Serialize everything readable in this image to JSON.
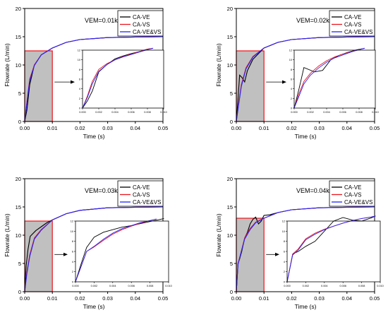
{
  "colors": {
    "ve": "#000000",
    "vs": "#e8141c",
    "vevs": "#2424ff",
    "shade": "#c0c0c0",
    "box": "#e8141c"
  },
  "chart_data": [
    {
      "type": "line",
      "annotation": "VEM=0.01kg",
      "xlabel": "Time (s)",
      "ylabel": "Flowrate (L/min)",
      "xlim": [
        0,
        0.05
      ],
      "ylim": [
        0,
        20
      ],
      "xticks": [
        "0.00",
        "0.01",
        "0.02",
        "0.03",
        "0.04",
        "0.05"
      ],
      "yticks": [
        "0",
        "5",
        "10",
        "15",
        "20"
      ],
      "shaded_region": {
        "x": [
          0,
          0.01
        ],
        "y": [
          0,
          12.5
        ]
      },
      "series": [
        {
          "name": "CA-VE",
          "x": [
            0,
            0.0008,
            0.0018,
            0.0035,
            0.006,
            0.01,
            0.015,
            0.02,
            0.03,
            0.04,
            0.05
          ],
          "y": [
            0,
            2.0,
            6.5,
            10.0,
            11.8,
            13.0,
            14.0,
            14.5,
            14.85,
            14.95,
            15.0
          ]
        },
        {
          "name": "CA-VS",
          "x": [
            0,
            0.0008,
            0.0018,
            0.0035,
            0.006,
            0.01,
            0.015,
            0.02,
            0.03,
            0.04,
            0.05
          ],
          "y": [
            0,
            3.5,
            7.5,
            10.0,
            11.8,
            13.0,
            14.0,
            14.5,
            14.85,
            14.95,
            15.0
          ]
        },
        {
          "name": "CA-VE&VS",
          "x": [
            0,
            0.0008,
            0.0018,
            0.0035,
            0.006,
            0.01,
            0.015,
            0.02,
            0.03,
            0.04,
            0.05
          ],
          "y": [
            0,
            3.2,
            7.2,
            9.9,
            11.8,
            13.0,
            14.0,
            14.5,
            14.85,
            14.95,
            15.0
          ]
        }
      ],
      "inset": {
        "xlim": [
          0,
          0.01
        ],
        "ylim": [
          0,
          12
        ],
        "xticks": [
          "0.000",
          "0.002",
          "0.004",
          "0.006",
          "0.008",
          "0.010"
        ],
        "yticks": [
          "0",
          "2",
          "4",
          "6",
          "8",
          "10",
          "12"
        ],
        "series": [
          {
            "name": "CA-VE",
            "x": [
              0,
              0.0006,
              0.0012,
              0.002,
              0.003,
              0.004,
              0.005,
              0.006,
              0.007,
              0.008,
              0.0087
            ],
            "y": [
              0,
              1.5,
              3.5,
              7.5,
              9.0,
              10.2,
              10.8,
              11.3,
              11.7,
              12.2,
              12.4
            ]
          },
          {
            "name": "CA-VS",
            "x": [
              0,
              0.0006,
              0.0012,
              0.002,
              0.003,
              0.004,
              0.005,
              0.006,
              0.007,
              0.008,
              0.0087
            ],
            "y": [
              0,
              2.5,
              5.5,
              8.0,
              9.2,
              10.0,
              10.7,
              11.2,
              11.7,
              12.2,
              12.4
            ]
          },
          {
            "name": "CA-VE&VS",
            "x": [
              0,
              0.0006,
              0.0012,
              0.002,
              0.003,
              0.004,
              0.005,
              0.006,
              0.007,
              0.008,
              0.0087
            ],
            "y": [
              0,
              2.2,
              5.0,
              7.6,
              9.0,
              10.0,
              10.6,
              11.1,
              11.6,
              12.1,
              12.4
            ]
          }
        ]
      }
    },
    {
      "type": "line",
      "annotation": "VEM=0.02kg",
      "xlabel": "Time (s)",
      "ylabel": "Flowrate (L/min)",
      "xlim": [
        0,
        0.05
      ],
      "ylim": [
        0,
        20
      ],
      "xticks": [
        "0.00",
        "0.01",
        "0.02",
        "0.03",
        "0.04",
        "0.05"
      ],
      "yticks": [
        "0",
        "5",
        "10",
        "15",
        "20"
      ],
      "shaded_region": {
        "x": [
          0,
          0.01
        ],
        "y": [
          0,
          12.5
        ]
      },
      "series": [
        {
          "name": "CA-VE",
          "x": [
            0,
            0.0006,
            0.0012,
            0.002,
            0.003,
            0.004,
            0.006,
            0.01,
            0.015,
            0.02,
            0.03,
            0.04,
            0.05
          ],
          "y": [
            0,
            4.0,
            8.2,
            7.8,
            7.0,
            9.0,
            11.0,
            13.0,
            14.0,
            14.5,
            14.85,
            14.95,
            15.0
          ]
        },
        {
          "name": "CA-VS",
          "x": [
            0,
            0.0008,
            0.0018,
            0.0035,
            0.006,
            0.01,
            0.015,
            0.02,
            0.03,
            0.04,
            0.05
          ],
          "y": [
            0,
            3.0,
            6.5,
            9.5,
            11.5,
            13.0,
            14.0,
            14.5,
            14.85,
            14.95,
            15.0
          ]
        },
        {
          "name": "CA-VE&VS",
          "x": [
            0,
            0.0008,
            0.0018,
            0.0035,
            0.006,
            0.01,
            0.015,
            0.02,
            0.03,
            0.04,
            0.05
          ],
          "y": [
            0,
            2.8,
            6.2,
            9.3,
            11.4,
            13.0,
            14.0,
            14.5,
            14.85,
            14.95,
            15.0
          ]
        }
      ],
      "inset": {
        "xlim": [
          0,
          0.01
        ],
        "ylim": [
          0,
          12
        ],
        "xticks": [
          "0.000",
          "0.002",
          "0.004",
          "0.006",
          "0.008",
          "0.010"
        ],
        "yticks": [
          "0",
          "2",
          "4",
          "6",
          "8",
          "10",
          "12"
        ],
        "series": [
          {
            "name": "CA-VE",
            "x": [
              0,
              0.0006,
              0.0012,
              0.0025,
              0.0035,
              0.0045,
              0.0055,
              0.0065,
              0.0075,
              0.0087
            ],
            "y": [
              0,
              4.0,
              8.4,
              7.5,
              7.8,
              10.0,
              10.9,
              11.5,
              12.0,
              12.4
            ]
          },
          {
            "name": "CA-VS",
            "x": [
              0,
              0.0006,
              0.0012,
              0.002,
              0.003,
              0.004,
              0.005,
              0.006,
              0.007,
              0.008,
              0.0087
            ],
            "y": [
              0,
              3.0,
              5.5,
              7.2,
              8.7,
              9.8,
              10.6,
              11.2,
              11.7,
              12.1,
              12.4
            ]
          },
          {
            "name": "CA-VE&VS",
            "x": [
              0,
              0.0006,
              0.0012,
              0.002,
              0.003,
              0.004,
              0.005,
              0.006,
              0.007,
              0.008,
              0.0087
            ],
            "y": [
              0,
              2.5,
              5.0,
              6.8,
              8.3,
              9.5,
              10.4,
              11.0,
              11.6,
              12.1,
              12.4
            ]
          }
        ]
      }
    },
    {
      "type": "line",
      "annotation": "VEM=0.03kg",
      "xlabel": "Time (s)",
      "ylabel": "Flowrate (L/min)",
      "xlim": [
        0,
        0.05
      ],
      "ylim": [
        0,
        20
      ],
      "xticks": [
        "0.00",
        "0.01",
        "0.02",
        "0.03",
        "0.04",
        "0.05"
      ],
      "yticks": [
        "0",
        "5",
        "10",
        "15",
        "20"
      ],
      "shaded_region": {
        "x": [
          0,
          0.01
        ],
        "y": [
          0,
          12.5
        ]
      },
      "series": [
        {
          "name": "CA-VE",
          "x": [
            0,
            0.0005,
            0.0012,
            0.002,
            0.004,
            0.006,
            0.008,
            0.01,
            0.015,
            0.02,
            0.03,
            0.04,
            0.05
          ],
          "y": [
            0,
            4.5,
            7.5,
            9.8,
            10.8,
            11.5,
            12.2,
            12.7,
            13.8,
            14.4,
            14.85,
            14.95,
            15.0
          ]
        },
        {
          "name": "CA-VS",
          "x": [
            0,
            0.0008,
            0.0018,
            0.0035,
            0.006,
            0.01,
            0.015,
            0.02,
            0.03,
            0.04,
            0.05
          ],
          "y": [
            0,
            3.5,
            6.5,
            9.5,
            11.0,
            12.7,
            13.8,
            14.4,
            14.85,
            14.95,
            15.0
          ]
        },
        {
          "name": "CA-VE&VS",
          "x": [
            0,
            0.0008,
            0.0018,
            0.0035,
            0.006,
            0.01,
            0.015,
            0.02,
            0.03,
            0.04,
            0.05
          ],
          "y": [
            0,
            3.2,
            6.2,
            9.3,
            10.9,
            12.7,
            13.8,
            14.4,
            14.85,
            14.95,
            15.0
          ]
        }
      ],
      "inset": {
        "xlim": [
          0,
          0.01
        ],
        "ylim": [
          0,
          12
        ],
        "xticks": [
          "0.000",
          "0.002",
          "0.004",
          "0.006",
          "0.008",
          "0.010"
        ],
        "yticks": [
          "0",
          "2",
          "4",
          "6",
          "8",
          "10",
          "12"
        ],
        "series": [
          {
            "name": "CA-VE",
            "x": [
              0,
              0.0006,
              0.0012,
              0.002,
              0.003,
              0.004,
              0.005,
              0.006,
              0.007,
              0.008,
              0.009,
              0.0095
            ],
            "y": [
              0,
              3.5,
              6.8,
              8.8,
              9.8,
              10.3,
              10.8,
              11.1,
              11.5,
              11.9,
              12.3,
              12.5
            ]
          },
          {
            "name": "CA-VS",
            "x": [
              0,
              0.0006,
              0.0012,
              0.002,
              0.003,
              0.004,
              0.005,
              0.006,
              0.007,
              0.008,
              0.0087
            ],
            "y": [
              0,
              3.0,
              6.0,
              6.9,
              8.2,
              9.4,
              10.3,
              11.0,
              11.6,
              12.1,
              12.4
            ]
          },
          {
            "name": "CA-VE&VS",
            "x": [
              0,
              0.0006,
              0.0012,
              0.002,
              0.003,
              0.004,
              0.005,
              0.006,
              0.007,
              0.008,
              0.0087
            ],
            "y": [
              0,
              3.0,
              6.0,
              7.0,
              8.4,
              9.6,
              10.5,
              11.1,
              11.7,
              12.1,
              12.4
            ]
          }
        ]
      }
    },
    {
      "type": "line",
      "annotation": "VEM=0.04kg",
      "xlabel": "Time (s)",
      "ylabel": "Flowrate (L/min)",
      "xlim": [
        0,
        0.05
      ],
      "ylim": [
        0,
        20
      ],
      "xticks": [
        "0.00",
        "0.01",
        "0.02",
        "0.03",
        "0.04",
        "0.05"
      ],
      "yticks": [
        "0",
        "5",
        "10",
        "15",
        "20"
      ],
      "shaded_region": {
        "x": [
          0,
          0.01
        ],
        "y": [
          0,
          13
        ]
      },
      "series": [
        {
          "name": "CA-VE",
          "x": [
            0,
            0.0006,
            0.0012,
            0.002,
            0.003,
            0.004,
            0.005,
            0.006,
            0.007,
            0.008,
            0.009,
            0.01,
            0.012,
            0.015,
            0.02,
            0.03,
            0.04,
            0.05
          ],
          "y": [
            0,
            5.0,
            5.8,
            7.2,
            9.5,
            10.5,
            12.0,
            12.8,
            13.2,
            12.0,
            12.5,
            13.5,
            13.6,
            14.0,
            14.5,
            14.85,
            14.95,
            15.0
          ]
        },
        {
          "name": "CA-VS",
          "x": [
            0,
            0.0006,
            0.0012,
            0.003,
            0.005,
            0.007,
            0.01,
            0.015,
            0.02,
            0.03,
            0.04,
            0.05
          ],
          "y": [
            0,
            5.0,
            6.0,
            9.5,
            11.2,
            12.3,
            13.0,
            14.0,
            14.5,
            14.85,
            14.95,
            15.0
          ]
        },
        {
          "name": "CA-VE&VS",
          "x": [
            0,
            0.0006,
            0.0012,
            0.003,
            0.005,
            0.007,
            0.01,
            0.015,
            0.02,
            0.03,
            0.04,
            0.05
          ],
          "y": [
            0,
            4.8,
            6.0,
            9.3,
            11.0,
            12.2,
            13.0,
            14.0,
            14.5,
            14.85,
            14.95,
            15.0
          ]
        }
      ],
      "inset": {
        "xlim": [
          0,
          0.01
        ],
        "ylim": [
          0,
          12
        ],
        "xticks": [
          "0.000",
          "0.002",
          "0.004",
          "0.006",
          "0.008",
          "0.010"
        ],
        "yticks": [
          "0",
          "2",
          "4",
          "6",
          "8",
          "10",
          "12"
        ],
        "series": [
          {
            "name": "CA-VE",
            "x": [
              0,
              0.0006,
              0.0012,
              0.002,
              0.003,
              0.004,
              0.005,
              0.006,
              0.007,
              0.008,
              0.009,
              0.0095
            ],
            "y": [
              0,
              5.5,
              6.0,
              7.0,
              8.0,
              10.0,
              12.0,
              12.7,
              12.2,
              12.0,
              12.6,
              13.0
            ]
          },
          {
            "name": "CA-VS",
            "x": [
              0,
              0.0006,
              0.0012,
              0.002,
              0.003,
              0.004,
              0.005,
              0.006,
              0.007,
              0.008,
              0.009,
              0.0095
            ],
            "y": [
              0,
              5.5,
              6.5,
              8.5,
              9.6,
              10.4,
              11.0,
              11.6,
              12.1,
              12.5,
              12.8,
              13.0
            ]
          },
          {
            "name": "CA-VE&VS",
            "x": [
              0,
              0.0006,
              0.0012,
              0.002,
              0.003,
              0.004,
              0.005,
              0.006,
              0.007,
              0.008,
              0.009,
              0.0095
            ],
            "y": [
              0,
              5.3,
              6.3,
              8.3,
              9.4,
              10.3,
              11.0,
              11.6,
              12.1,
              12.5,
              12.8,
              13.0
            ]
          }
        ]
      }
    }
  ]
}
